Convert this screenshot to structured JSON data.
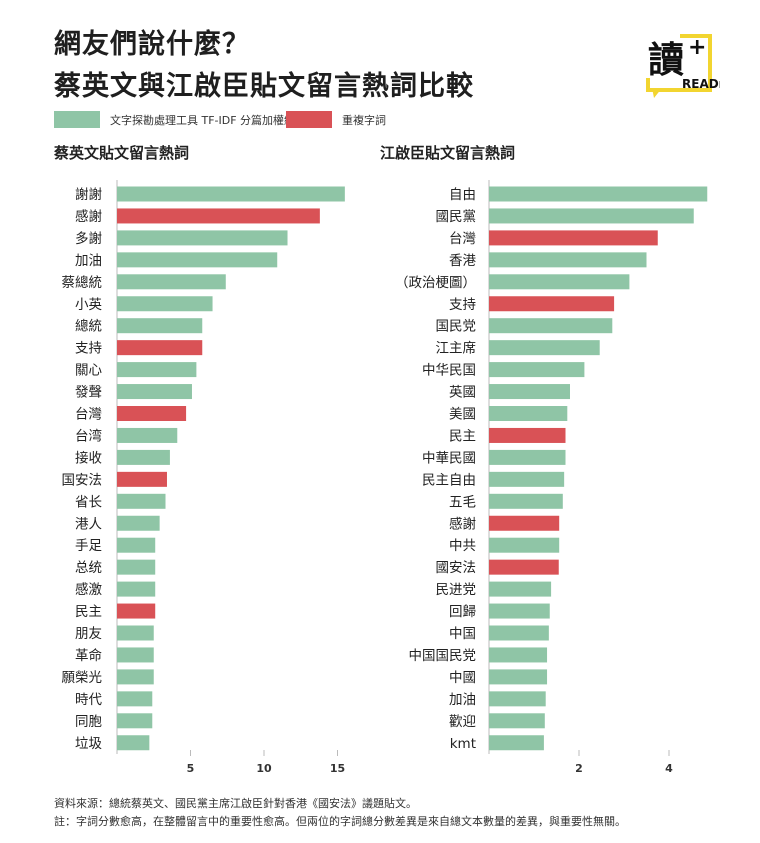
{
  "header": {
    "title_line1": "網友們說什麼？",
    "title_line2": "蔡英文與江啟臣貼文留言熱詞比較",
    "logo_text": "READr",
    "logo_char": "讀"
  },
  "legend": [
    {
      "label": "文字探勘處理工具 TF-IDF 分篇加權總分",
      "color": "#8fc5a6"
    },
    {
      "label": "重複字詞",
      "color": "#d95256"
    }
  ],
  "colors": {
    "normal": "#8fc5a6",
    "repeated": "#d95256",
    "axis": "#999999"
  },
  "chart_data": [
    {
      "type": "bar",
      "orientation": "horizontal",
      "title": "蔡英文貼文留言熱詞",
      "xticks": [
        5,
        10,
        15
      ],
      "xlim": [
        0,
        16
      ],
      "categories": [
        "謝謝",
        "感謝",
        "多謝",
        "加油",
        "蔡總統",
        "小英",
        "總統",
        "支持",
        "關心",
        "發聲",
        "台灣",
        "台湾",
        "接收",
        "国安法",
        "省长",
        "港人",
        "手足",
        "总统",
        "感激",
        "民主",
        "朋友",
        "革命",
        "願榮光",
        "時代",
        "同胞",
        "垃圾"
      ],
      "values": [
        15.5,
        13.8,
        11.6,
        10.9,
        7.4,
        6.5,
        5.8,
        5.8,
        5.4,
        5.1,
        4.7,
        4.1,
        3.6,
        3.4,
        3.3,
        2.9,
        2.6,
        2.6,
        2.6,
        2.6,
        2.5,
        2.5,
        2.5,
        2.4,
        2.4,
        2.2
      ],
      "repeated": [
        false,
        true,
        false,
        false,
        false,
        false,
        false,
        true,
        false,
        false,
        true,
        false,
        false,
        true,
        false,
        false,
        false,
        false,
        false,
        true,
        false,
        false,
        false,
        false,
        false,
        false
      ]
    },
    {
      "type": "bar",
      "orientation": "horizontal",
      "title": "江啟臣貼文留言熱詞",
      "xticks": [
        2,
        4
      ],
      "xlim": [
        0,
        5
      ],
      "categories": [
        "自由",
        "國民黨",
        "台灣",
        "香港",
        "（政治梗圖）",
        "支持",
        "国民党",
        "江主席",
        "中华民国",
        "英國",
        "美國",
        "民主",
        "中華民國",
        "民主自由",
        "五毛",
        "感謝",
        "中共",
        "國安法",
        "民进党",
        "回歸",
        "中国",
        "中国国民党",
        "中國",
        "加油",
        "歡迎",
        "kmt"
      ],
      "values": [
        4.85,
        4.55,
        3.75,
        3.5,
        3.12,
        2.78,
        2.74,
        2.46,
        2.12,
        1.8,
        1.74,
        1.7,
        1.7,
        1.67,
        1.64,
        1.56,
        1.56,
        1.55,
        1.38,
        1.35,
        1.33,
        1.29,
        1.29,
        1.26,
        1.24,
        1.22
      ],
      "repeated": [
        false,
        false,
        true,
        false,
        false,
        true,
        false,
        false,
        false,
        false,
        false,
        true,
        false,
        false,
        false,
        true,
        false,
        true,
        false,
        false,
        false,
        false,
        false,
        false,
        false,
        false
      ]
    }
  ],
  "footer": {
    "source": "資料來源：總統蔡英文、國民黨主席江啟臣針對香港《國安法》議題貼文。",
    "note": "註：字詞分數愈高，在整體留言中的重要性愈高。但兩位的字詞總分數差異是來自總文本數量的差異，與重要性無關。"
  }
}
